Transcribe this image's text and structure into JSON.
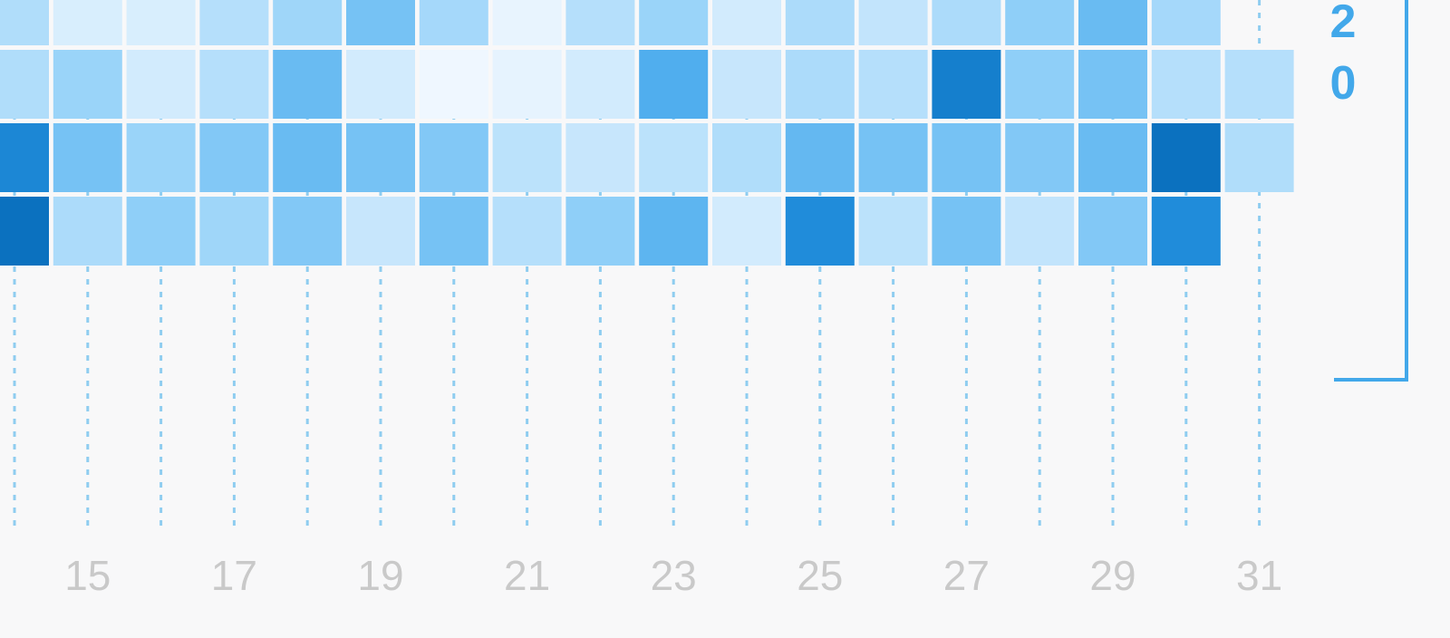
{
  "chart_data": {
    "type": "heatmap",
    "title": "",
    "xlabel": "",
    "ylabel": "",
    "x_tick_labels": [
      "15",
      "17",
      "19",
      "21",
      "23",
      "25",
      "27",
      "29",
      "31"
    ],
    "columns": [
      14,
      15,
      16,
      17,
      18,
      19,
      20,
      21,
      22,
      23,
      24,
      25,
      26,
      27,
      28,
      29,
      30,
      31
    ],
    "rows": 4,
    "value_range": [
      0,
      1
    ],
    "color_scale": [
      "#f3f9ff",
      "#0b71bf"
    ],
    "values": [
      [
        0.3,
        0.12,
        0.12,
        0.28,
        0.38,
        0.55,
        0.35,
        0.05,
        0.28,
        0.4,
        0.15,
        0.32,
        0.22,
        0.32,
        0.45,
        0.6,
        0.35,
        null
      ],
      [
        0.3,
        0.4,
        0.15,
        0.28,
        0.6,
        0.15,
        0.02,
        0.06,
        0.15,
        0.7,
        0.2,
        0.32,
        0.28,
        0.95,
        0.45,
        0.55,
        0.28,
        0.28
      ],
      [
        0.92,
        0.55,
        0.4,
        0.5,
        0.6,
        0.55,
        0.5,
        0.25,
        0.2,
        0.25,
        0.3,
        0.62,
        0.55,
        0.55,
        0.5,
        0.6,
        1.0,
        0.3
      ],
      [
        1.0,
        0.32,
        0.45,
        0.38,
        0.5,
        0.2,
        0.55,
        0.28,
        0.45,
        0.65,
        0.15,
        0.9,
        0.25,
        0.55,
        0.22,
        0.5,
        0.9,
        null
      ]
    ]
  },
  "side_panel": {
    "digits": [
      "2",
      "0"
    ],
    "accent_color": "#42a8ea"
  },
  "gridline_color": "#8fcdf0"
}
